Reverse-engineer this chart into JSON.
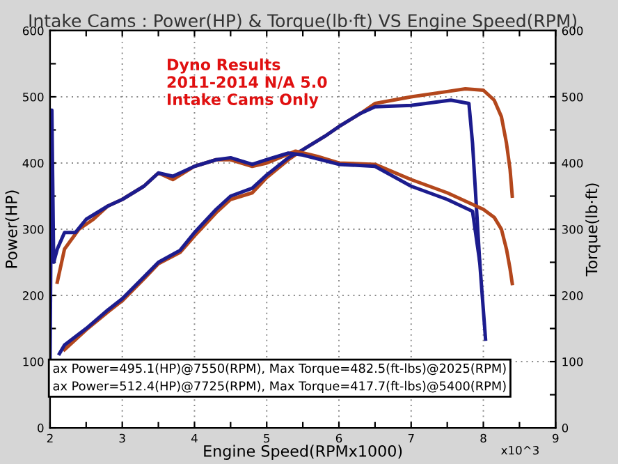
{
  "chart_data": {
    "type": "line",
    "title": "Intake Cams : Power(HP) & Torque(lb·ft) VS Engine Speed(RPM)",
    "xlabel": "Engine Speed(RPMx1000)",
    "ylabel": "Power(HP)",
    "y2label": "Torque(lb·ft)",
    "xlim": [
      2,
      9
    ],
    "xticks": [
      2,
      {
        "value": 2.5,
        "label": null
      },
      3,
      {
        "value": 3.5,
        "label": null
      },
      4,
      {
        "value": 4.5,
        "label": null
      },
      5,
      {
        "value": 5.5,
        "label": null
      },
      6,
      {
        "value": 6.5,
        "label": null
      },
      7,
      {
        "value": 7.5,
        "label": null
      },
      8,
      {
        "value": 8.5,
        "label": null
      },
      9
    ],
    "ylim": [
      0,
      600
    ],
    "yticks": [
      0,
      {
        "value": 50,
        "label": null
      },
      100,
      {
        "value": 150,
        "label": null
      },
      200,
      {
        "value": 250,
        "label": null
      },
      300,
      {
        "value": 350,
        "label": null
      },
      400,
      {
        "value": 450,
        "label": null
      },
      500,
      {
        "value": 550,
        "label": null
      },
      600
    ],
    "y2lim": [
      0,
      600
    ],
    "y2ticks": [
      0,
      {
        "value": 50,
        "label": null
      },
      100,
      {
        "value": 150,
        "label": null
      },
      200,
      {
        "value": 250,
        "label": null
      },
      300,
      {
        "value": 350,
        "label": null
      },
      400,
      {
        "value": 450,
        "label": null
      },
      500,
      {
        "value": 550,
        "label": null
      },
      600
    ],
    "grid": true,
    "legend": false,
    "marker": "none",
    "line_style": "solid",
    "series": [
      {
        "color": "#b3471c",
        "x": [
          2.2,
          2.5,
          2.8,
          3.0,
          3.3,
          3.5,
          3.8,
          4.0,
          4.3,
          4.5,
          4.8,
          5.0,
          5.3,
          5.5,
          5.8,
          6.0,
          6.3,
          6.5,
          7.0,
          7.5,
          7.75,
          8.0,
          8.15,
          8.25,
          8.32,
          8.37,
          8.4
        ],
        "values": [
          118,
          148,
          175,
          192,
          225,
          248,
          265,
          290,
          325,
          345,
          355,
          378,
          405,
          420,
          440,
          455,
          475,
          490,
          500,
          508,
          512,
          510,
          495,
          470,
          430,
          390,
          350
        ]
      },
      {
        "color": "#1c1c8e",
        "x": [
          2.13,
          2.2,
          2.5,
          2.8,
          3.0,
          3.3,
          3.5,
          3.8,
          4.0,
          4.3,
          4.5,
          4.8,
          5.0,
          5.3,
          5.5,
          5.8,
          6.0,
          6.3,
          6.5,
          7.0,
          7.55,
          7.8,
          7.85,
          7.95
        ],
        "values": [
          112,
          125,
          150,
          178,
          195,
          228,
          250,
          268,
          295,
          330,
          350,
          362,
          382,
          408,
          420,
          440,
          455,
          475,
          485,
          487,
          495,
          490,
          430,
          250
        ]
      },
      {
        "axis": "y2",
        "color": "#b3471c",
        "x": [
          2.1,
          2.2,
          2.4,
          2.6,
          2.8,
          3.0,
          3.3,
          3.5,
          3.7,
          4.0,
          4.3,
          4.5,
          4.8,
          5.0,
          5.4,
          5.7,
          6.0,
          6.5,
          7.0,
          7.5,
          8.0,
          8.15,
          8.25,
          8.32,
          8.37,
          8.4
        ],
        "values": [
          220,
          270,
          300,
          315,
          335,
          345,
          365,
          385,
          375,
          395,
          405,
          405,
          395,
          400,
          418,
          410,
          400,
          398,
          375,
          355,
          330,
          318,
          300,
          270,
          240,
          218
        ]
      },
      {
        "axis": "y2",
        "color": "#1c1c8e",
        "x": [
          2.0,
          2.025,
          2.05,
          2.1,
          2.2,
          2.35,
          2.5,
          2.8,
          3.0,
          3.3,
          3.5,
          3.7,
          4.0,
          4.3,
          4.5,
          4.8,
          5.0,
          5.3,
          5.5,
          6.0,
          6.5,
          7.0,
          7.5,
          7.85,
          7.95,
          8.03
        ],
        "values": [
          100,
          480,
          250,
          270,
          295,
          295,
          315,
          335,
          345,
          365,
          385,
          380,
          395,
          405,
          408,
          398,
          405,
          415,
          412,
          398,
          395,
          365,
          345,
          327,
          250,
          134
        ]
      }
    ],
    "annotations": [
      "Dyno Results\n2011-2014 N/A 5.0\nIntake Cams Only",
      "ax Power=495.1(HP)@7550(RPM), Max Torque=482.5(ft-lbs)@2025(RPM)",
      "ax Power=512.4(HP)@7725(RPM), Max Torque=417.7(ft-lbs)@5400(RPM)",
      "x10^3"
    ]
  }
}
